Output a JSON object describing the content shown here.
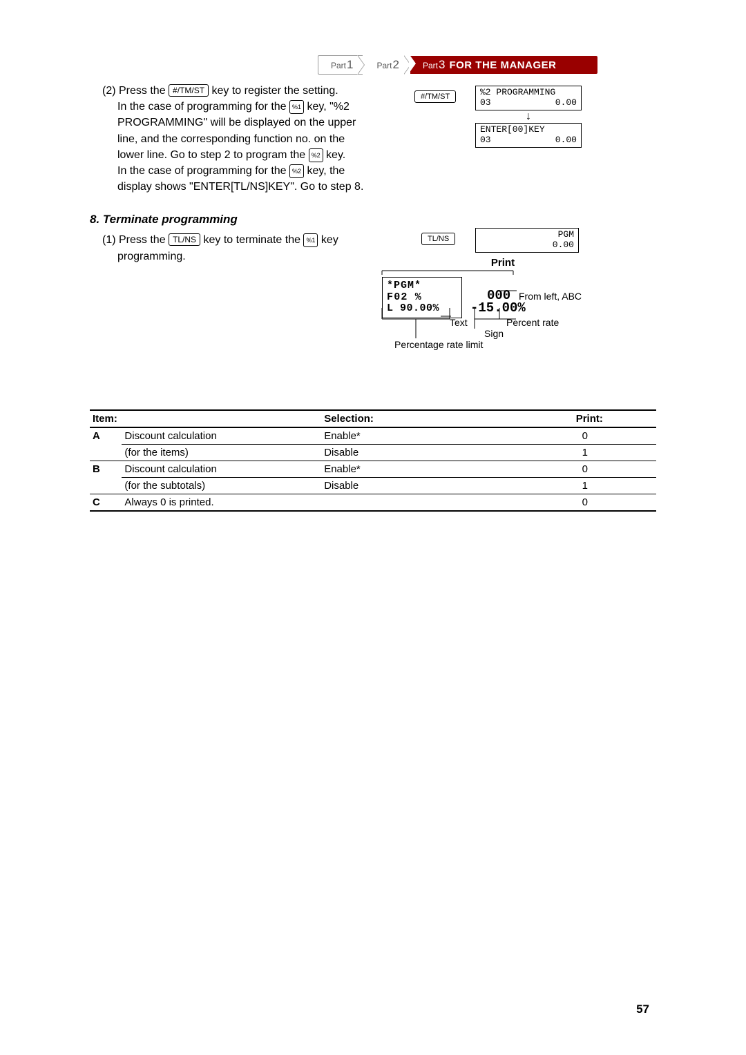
{
  "breadcrumb": {
    "p1_label": "Part",
    "p1_num": "1",
    "p2_label": "Part",
    "p2_num": "2",
    "p3_label": "Part",
    "p3_num": "3",
    "p3_title": "FOR THE MANAGER"
  },
  "step2": {
    "prefix": "(2) Press the ",
    "key1": "#/TM/ST",
    "m1": " key to register the setting.",
    "l2a": "In the case of programming for the ",
    "key2": "%1",
    "l2b": " key, \"%2",
    "l3": "PROGRAMMING\" will be displayed on the upper",
    "l4": "line, and the corresponding function no. on the",
    "l5a": "lower line.  Go to step 2 to program the ",
    "key3": "%2",
    "l5b": " key.",
    "l6a": "In the case of programming for the ",
    "key4": "%2",
    "l6b": " key, the",
    "l7": "display shows \"ENTER[TL/NS]KEY\".  Go to step 8."
  },
  "disp1": {
    "kb": "#/TM/ST",
    "lcd1_l1a": "%2 PROGRAMMING",
    "lcd1_l2a": "03",
    "lcd1_l2b": "0.00",
    "lcd2_l1": "ENTER[00]KEY",
    "lcd2_l2a": "03",
    "lcd2_l2b": "0.00"
  },
  "section8": {
    "title": "8. Terminate programming",
    "s1a": "(1) Press the ",
    "key1": "TL/NS",
    "s1b": " key to terminate the ",
    "key2": "%1",
    "s1c": " key",
    "s2": "programming."
  },
  "disp2": {
    "kb": "TL/NS",
    "lcd_r1": "PGM",
    "lcd_r2": "0.00"
  },
  "receipt": {
    "label": "Print",
    "l1": "*PGM*",
    "l2": "F02 %",
    "l3": "L 90.00%",
    "big1": "000",
    "big2": "-15.00%",
    "ann_fromleft": "From left, ABC",
    "ann_text": "Text",
    "ann_percent": "Percent rate",
    "ann_sign": "Sign",
    "ann_limit": "Percentage rate limit"
  },
  "table": {
    "h_item": "Item:",
    "h_sel": "Selection:",
    "h_print": "Print:",
    "rows": [
      {
        "lb": "A",
        "desc": "Discount calculation",
        "sel": "Enable*",
        "pr": "0",
        "bot": false
      },
      {
        "lb": "",
        "desc": "(for the items)",
        "sel": "Disable",
        "pr": "1",
        "bot": true
      },
      {
        "lb": "B",
        "desc": "Discount calculation",
        "sel": "Enable*",
        "pr": "0",
        "bot": false
      },
      {
        "lb": "",
        "desc": "(for the subtotals)",
        "sel": "Disable",
        "pr": "1",
        "bot": true
      },
      {
        "lb": "C",
        "desc": "Always 0 is printed.",
        "sel": "",
        "pr": "0",
        "bot": true
      }
    ]
  },
  "page_number": "57"
}
